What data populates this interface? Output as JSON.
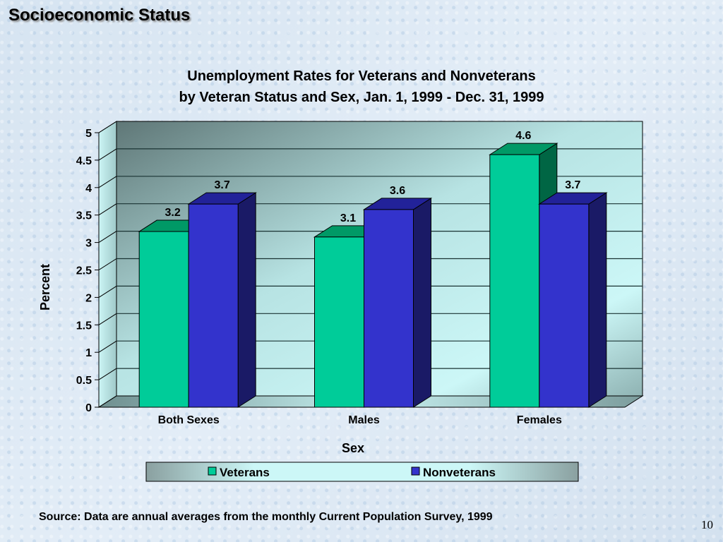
{
  "slide": {
    "title": "Socioeconomic Status",
    "source": "Source:  Data are annual averages from the monthly Current Population Survey, 1999",
    "page_number": "10"
  },
  "chart": {
    "title_line1": "Unemployment Rates for Veterans and Nonveterans",
    "title_line2": "by Veteran Status and Sex, Jan. 1, 1999 - Dec. 31, 1999",
    "ylabel": "Percent",
    "xlabel": "Sex",
    "yticks": [
      "0",
      "0.5",
      "1",
      "1.5",
      "2",
      "2.5",
      "3",
      "3.5",
      "4",
      "4.5",
      "5"
    ],
    "categories": [
      "Both Sexes",
      "Males",
      "Females"
    ],
    "legend": [
      {
        "label": "Veterans",
        "color": "#00cc99"
      },
      {
        "label": "Nonveterans",
        "color": "#3333cc"
      }
    ]
  },
  "chart_data": {
    "type": "bar",
    "title": "Unemployment Rates for Veterans and Nonveterans by Veteran Status and Sex, Jan. 1, 1999 - Dec. 31, 1999",
    "categories": [
      "Both Sexes",
      "Males",
      "Females"
    ],
    "series": [
      {
        "name": "Veterans",
        "values": [
          3.2,
          3.1,
          4.6
        ],
        "color": "#00cc99"
      },
      {
        "name": "Nonveterans",
        "values": [
          3.7,
          3.6,
          3.7
        ],
        "color": "#3333cc"
      }
    ],
    "xlabel": "Sex",
    "ylabel": "Percent",
    "ylim": [
      0,
      5
    ],
    "yticks": [
      0,
      0.5,
      1,
      1.5,
      2,
      2.5,
      3,
      3.5,
      4,
      4.5,
      5
    ],
    "grid": true,
    "legend_position": "bottom",
    "style": "3d-clustered-column"
  }
}
